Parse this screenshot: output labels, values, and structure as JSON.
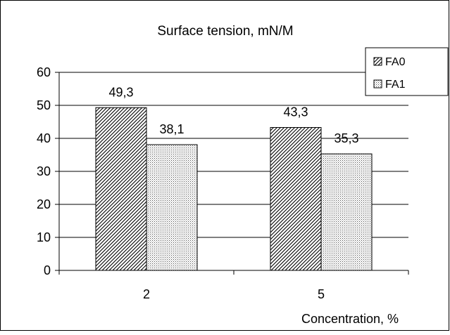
{
  "chart_data": {
    "type": "bar",
    "title": "Surface tension, mN/M",
    "xlabel": "Concentration, %",
    "ylabel": "",
    "categories": [
      "2",
      "5"
    ],
    "series": [
      {
        "name": "FA0",
        "values": [
          49.3,
          43.3
        ],
        "labels": [
          "49,3",
          "43,3"
        ],
        "pattern": "diagonal-hatch"
      },
      {
        "name": "FA1",
        "values": [
          38.1,
          35.3
        ],
        "labels": [
          "38,1",
          "35,3"
        ],
        "pattern": "fine-dots"
      }
    ],
    "ylim": [
      0,
      60
    ],
    "yticks": [
      0,
      10,
      20,
      30,
      40,
      50,
      60
    ],
    "grid": "horizontal-major",
    "legend_position": "top-right",
    "colors": {
      "ink": "#000000",
      "background": "#ffffff"
    }
  }
}
